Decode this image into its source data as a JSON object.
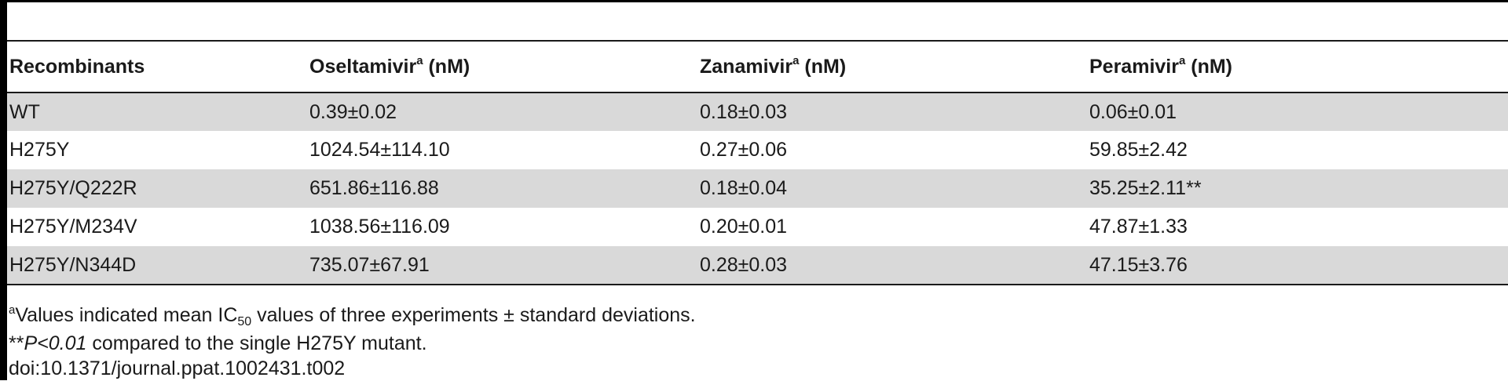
{
  "table": {
    "headers": [
      {
        "label": "Recombinants",
        "sup": ""
      },
      {
        "label": "Oseltamivir",
        "sup": "a",
        "unit": " (nM)"
      },
      {
        "label": "Zanamivir",
        "sup": "a",
        "unit": " (nM)"
      },
      {
        "label": "Peramivir",
        "sup": "a",
        "unit": " (nM)"
      }
    ],
    "rows": [
      {
        "recombinant": "WT",
        "oseltamivir": "0.39±0.02",
        "zanamivir": "0.18±0.03",
        "peramivir": "0.06±0.01"
      },
      {
        "recombinant": "H275Y",
        "oseltamivir": "1024.54±114.10",
        "zanamivir": "0.27±0.06",
        "peramivir": "59.85±2.42"
      },
      {
        "recombinant": "H275Y/Q222R",
        "oseltamivir": "651.86±116.88",
        "zanamivir": "0.18±0.04",
        "peramivir": "35.25±2.11**"
      },
      {
        "recombinant": "H275Y/M234V",
        "oseltamivir": "1038.56±116.09",
        "zanamivir": "0.20±0.01",
        "peramivir": "47.87±1.33"
      },
      {
        "recombinant": "H275Y/N344D",
        "oseltamivir": "735.07±67.91",
        "zanamivir": "0.28±0.03",
        "peramivir": "47.15±3.76"
      }
    ],
    "shade_color": "#d9d9d9"
  },
  "footnotes": {
    "a_marker": "a",
    "a_text_1": "Values indicated mean IC",
    "a_sub": "50",
    "a_text_2": " values of three experiments ± standard deviations.",
    "p_prefix": "**",
    "p_italic": "P<0.01",
    "p_text": " compared to the single H275Y mutant.",
    "doi": "doi:10.1371/journal.ppat.1002431.t002"
  }
}
